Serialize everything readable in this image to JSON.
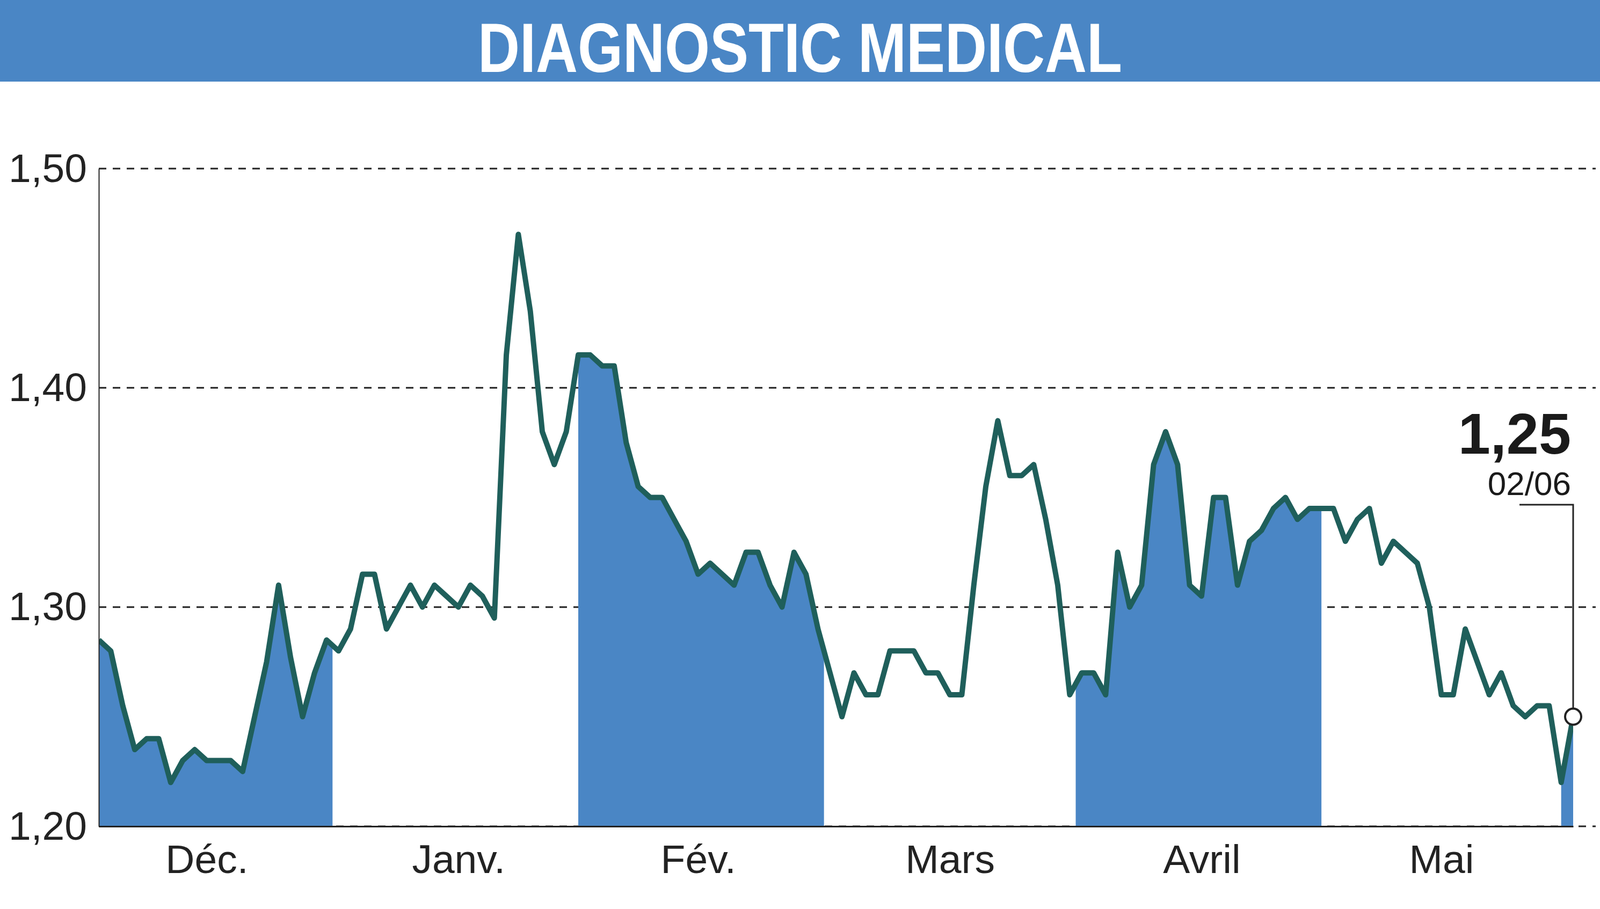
{
  "chart_data": {
    "type": "line",
    "title": "DIAGNOSTIC MEDICAL",
    "categories": [
      null,
      null,
      null,
      null,
      null,
      null,
      null,
      null,
      null,
      "Déc.",
      null,
      null,
      null,
      null,
      null,
      null,
      null,
      null,
      null,
      null,
      null,
      null,
      null,
      null,
      null,
      null,
      null,
      null,
      null,
      null,
      "Janv.",
      null,
      null,
      null,
      null,
      null,
      null,
      null,
      null,
      null,
      null,
      null,
      null,
      null,
      null,
      null,
      null,
      null,
      null,
      null,
      "Fév.",
      null,
      null,
      null,
      null,
      null,
      null,
      null,
      null,
      null,
      null,
      null,
      null,
      null,
      null,
      null,
      null,
      null,
      null,
      null,
      null,
      "Mars",
      null,
      null,
      null,
      null,
      null,
      null,
      null,
      null,
      null,
      null,
      null,
      null,
      null,
      null,
      null,
      null,
      null,
      null,
      null,
      null,
      "Avril",
      null,
      null,
      null,
      null,
      null,
      null,
      null,
      null,
      null,
      null,
      null,
      null,
      null,
      null,
      null,
      null,
      null,
      null,
      null,
      "Mai",
      null,
      null,
      null,
      null,
      null,
      null,
      null,
      null,
      null,
      null,
      null
    ],
    "values": [
      1.285,
      1.28,
      1.255,
      1.235,
      1.24,
      1.24,
      1.22,
      1.23,
      1.235,
      1.23,
      1.23,
      1.23,
      1.225,
      1.25,
      1.275,
      1.31,
      1.277,
      1.25,
      1.27,
      1.285,
      1.28,
      1.29,
      1.315,
      1.315,
      1.29,
      1.3,
      1.31,
      1.3,
      1.31,
      1.305,
      1.3,
      1.31,
      1.305,
      1.295,
      1.415,
      1.47,
      1.435,
      1.38,
      1.365,
      1.38,
      1.415,
      1.415,
      1.41,
      1.41,
      1.375,
      1.355,
      1.35,
      1.35,
      1.34,
      1.33,
      1.315,
      1.32,
      1.315,
      1.31,
      1.325,
      1.325,
      1.31,
      1.3,
      1.325,
      1.315,
      1.29,
      1.27,
      1.25,
      1.27,
      1.26,
      1.26,
      1.28,
      1.28,
      1.28,
      1.27,
      1.27,
      1.26,
      1.26,
      1.31,
      1.355,
      1.385,
      1.36,
      1.36,
      1.365,
      1.34,
      1.31,
      1.26,
      1.27,
      1.27,
      1.26,
      1.325,
      1.3,
      1.31,
      1.365,
      1.38,
      1.365,
      1.31,
      1.305,
      1.35,
      1.35,
      1.31,
      1.33,
      1.335,
      1.345,
      1.35,
      1.34,
      1.345,
      1.345,
      1.345,
      1.33,
      1.34,
      1.345,
      1.32,
      1.33,
      1.325,
      1.32,
      1.3,
      1.26,
      1.26,
      1.29,
      1.275,
      1.26,
      1.27,
      1.255,
      1.25,
      1.255,
      1.255,
      1.22,
      1.25
    ],
    "color": "#1f5f5b",
    "ylim": [
      1.2,
      1.5
    ],
    "yticks": [
      {
        "value": 1.2,
        "label": "1,20"
      },
      {
        "value": 1.3,
        "label": "1,30"
      },
      {
        "value": 1.4,
        "label": "1,40"
      },
      {
        "value": 1.5,
        "label": "1,50"
      }
    ],
    "grid": true,
    "annotation": {
      "text": "1,25",
      "date": "02/06"
    }
  }
}
